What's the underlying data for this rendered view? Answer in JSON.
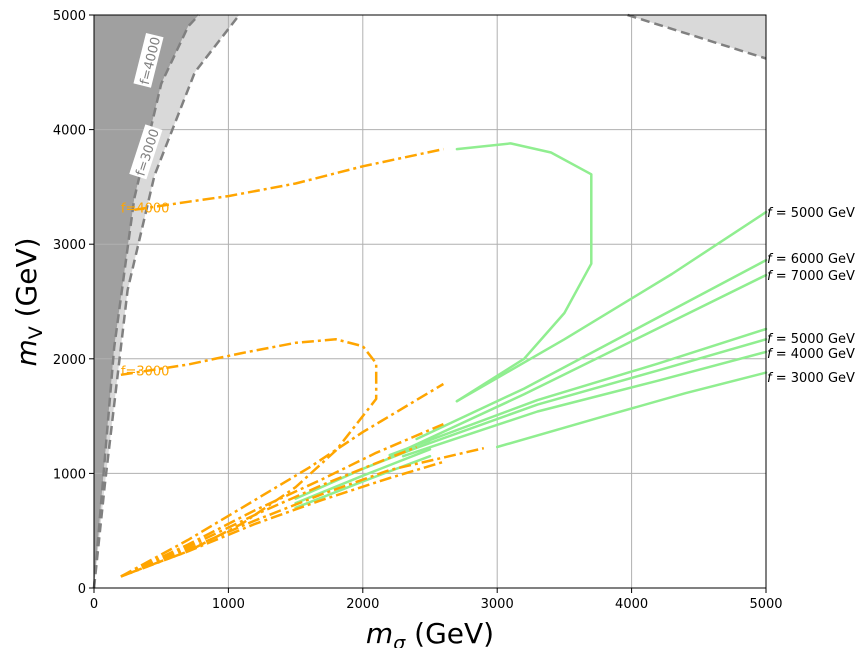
{
  "chart_data": {
    "type": "line",
    "xlabel_main": "m",
    "xlabel_sub": "σ",
    "xlabel_unit": " (GeV)",
    "ylabel_main": "m",
    "ylabel_sub": "V",
    "ylabel_unit": " (GeV)",
    "xlim": [
      0,
      5000
    ],
    "ylim": [
      0,
      5000
    ],
    "xticks": [
      0,
      1000,
      2000,
      3000,
      4000,
      5000
    ],
    "yticks": [
      0,
      1000,
      2000,
      3000,
      4000,
      5000
    ],
    "grid": true,
    "colors": {
      "green": "#90ee90",
      "orange": "#ffa500",
      "gray_dark": "#a0a0a0",
      "gray_light": "#d9d9d9",
      "gray_line": "#808080"
    },
    "excluded_regions": [
      {
        "name": "f=4000",
        "boundary": [
          [
            0,
            0
          ],
          [
            50,
            700
          ],
          [
            150,
            2100
          ],
          [
            300,
            3400
          ],
          [
            500,
            4400
          ],
          [
            700,
            4900
          ],
          [
            780,
            5000
          ]
        ]
      },
      {
        "name": "f=3000",
        "boundary": [
          [
            0,
            0
          ],
          [
            80,
            900
          ],
          [
            250,
            2600
          ],
          [
            450,
            3600
          ],
          [
            750,
            4500
          ],
          [
            1080,
            5000
          ]
        ]
      },
      {
        "name": "top-right",
        "boundary": [
          [
            3970,
            5000
          ],
          [
            5000,
            4620
          ]
        ]
      }
    ],
    "boundary_labels": [
      {
        "text": "f=4000",
        "x": 420,
        "y": 4600,
        "rotation": -76
      },
      {
        "text": "f=3000",
        "x": 400,
        "y": 3800,
        "rotation": -72
      }
    ],
    "orange_labels": [
      {
        "text": "f=4000",
        "x": 200,
        "y": 3320
      },
      {
        "text": "f=3000",
        "x": 200,
        "y": 1900
      }
    ],
    "orange_series": [
      {
        "points": [
          [
            300,
            3300
          ],
          [
            700,
            3370
          ],
          [
            1000,
            3420
          ],
          [
            1500,
            3530
          ],
          [
            2000,
            3680
          ],
          [
            2600,
            3830
          ]
        ]
      },
      {
        "points": [
          [
            200,
            1860
          ],
          [
            700,
            1950
          ],
          [
            1100,
            2050
          ],
          [
            1500,
            2140
          ],
          [
            1800,
            2170
          ],
          [
            2000,
            2110
          ],
          [
            2100,
            1960
          ],
          [
            2100,
            1650
          ],
          [
            1800,
            1200
          ],
          [
            1500,
            880
          ],
          [
            1100,
            560
          ],
          [
            700,
            320
          ],
          [
            400,
            190
          ],
          [
            200,
            100
          ]
        ]
      },
      {
        "points": [
          [
            200,
            100
          ],
          [
            700,
            420
          ],
          [
            1200,
            770
          ],
          [
            1600,
            1050
          ],
          [
            2000,
            1360
          ],
          [
            2600,
            1780
          ]
        ]
      },
      {
        "points": [
          [
            200,
            100
          ],
          [
            700,
            380
          ],
          [
            1200,
            680
          ],
          [
            1700,
            950
          ],
          [
            2100,
            1180
          ],
          [
            2600,
            1430
          ]
        ]
      },
      {
        "points": [
          [
            200,
            100
          ],
          [
            700,
            360
          ],
          [
            1200,
            640
          ],
          [
            1700,
            900
          ],
          [
            2100,
            1090
          ],
          [
            2400,
            1230
          ]
        ]
      },
      {
        "points": [
          [
            200,
            100
          ],
          [
            700,
            340
          ],
          [
            1200,
            590
          ],
          [
            1700,
            820
          ],
          [
            2200,
            1030
          ],
          [
            2900,
            1220
          ]
        ]
      },
      {
        "points": [
          [
            200,
            100
          ],
          [
            700,
            320
          ],
          [
            1200,
            560
          ],
          [
            1700,
            770
          ],
          [
            2200,
            960
          ],
          [
            2600,
            1100
          ]
        ]
      }
    ],
    "green_series": [
      {
        "points": [
          [
            2700,
            3830
          ],
          [
            3100,
            3880
          ],
          [
            3400,
            3800
          ],
          [
            3700,
            3610
          ],
          [
            3700,
            2830
          ],
          [
            3500,
            2400
          ],
          [
            3200,
            2000
          ],
          [
            2700,
            1630
          ]
        ]
      },
      {
        "points": [
          [
            2700,
            1630
          ],
          [
            3500,
            2170
          ],
          [
            4300,
            2740
          ],
          [
            5000,
            3280
          ]
        ]
      },
      {
        "points": [
          [
            2400,
            1300
          ],
          [
            3200,
            1740
          ],
          [
            4100,
            2300
          ],
          [
            5000,
            2860
          ]
        ]
      },
      {
        "points": [
          [
            2300,
            1200
          ],
          [
            3200,
            1690
          ],
          [
            4100,
            2210
          ],
          [
            5000,
            2730
          ]
        ]
      },
      {
        "points": [
          [
            2200,
            1160
          ],
          [
            3300,
            1640
          ],
          [
            4200,
            1960
          ],
          [
            5000,
            2260
          ]
        ]
      },
      {
        "points": [
          [
            2200,
            1140
          ],
          [
            3300,
            1600
          ],
          [
            4200,
            1900
          ],
          [
            5000,
            2170
          ]
        ]
      },
      {
        "points": [
          [
            2300,
            1150
          ],
          [
            3300,
            1540
          ],
          [
            4200,
            1810
          ],
          [
            5000,
            2060
          ]
        ]
      },
      {
        "points": [
          [
            3000,
            1230
          ],
          [
            3800,
            1500
          ],
          [
            4400,
            1700
          ],
          [
            5000,
            1880
          ]
        ]
      },
      {
        "points": [
          [
            1500,
            700
          ],
          [
            2000,
            930
          ],
          [
            2500,
            1150
          ]
        ]
      },
      {
        "points": [
          [
            1500,
            740
          ],
          [
            2000,
            980
          ],
          [
            2500,
            1210
          ]
        ]
      },
      {
        "points": [
          [
            1500,
            780
          ],
          [
            2000,
            1040
          ],
          [
            2500,
            1270
          ]
        ]
      }
    ],
    "right_labels": [
      {
        "prefix": "f",
        "text": " = 5000 GeV",
        "y": 3280
      },
      {
        "prefix": "f",
        "text": " = 6000 GeV",
        "y": 2880
      },
      {
        "prefix": "f",
        "text": " = 7000 GeV",
        "y": 2730
      },
      {
        "prefix": "f",
        "text": " = 5000 GeV",
        "y": 2180
      },
      {
        "prefix": "f",
        "text": " = 4000 GeV",
        "y": 2050
      },
      {
        "prefix": "f",
        "text": " = 3000 GeV",
        "y": 1840
      }
    ]
  }
}
